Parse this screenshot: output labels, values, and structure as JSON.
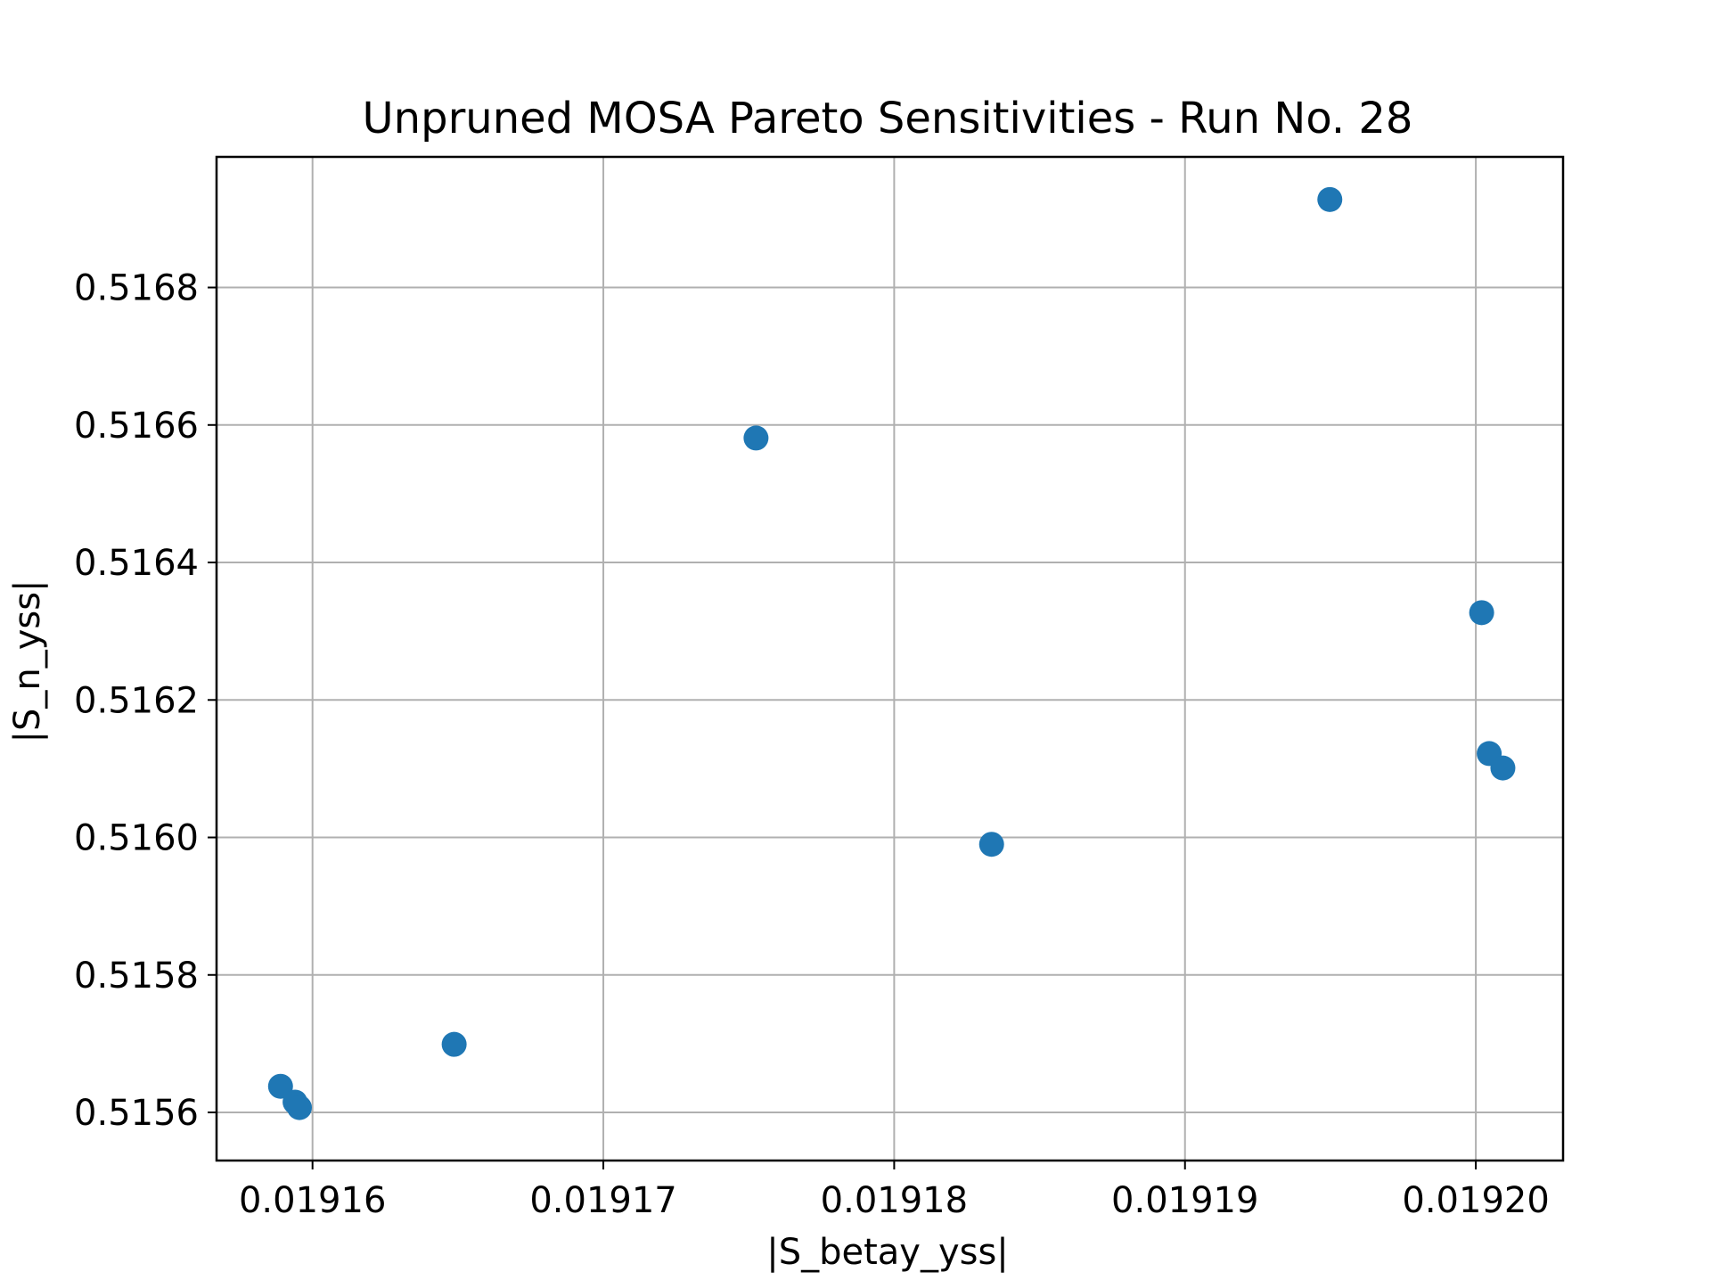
{
  "chart_data": {
    "type": "scatter",
    "title": "Unpruned MOSA Pareto Sensitivities - Run No. 28",
    "xlabel": "|S_betay_yss|",
    "ylabel": "|S_n_yss|",
    "xlim": [
      0.0191567,
      0.019203
    ],
    "ylim": [
      0.51553,
      0.51699
    ],
    "xticks": [
      0.01916,
      0.01917,
      0.01918,
      0.01919,
      0.0192
    ],
    "xtick_labels": [
      "0.01916",
      "0.01917",
      "0.01918",
      "0.01919",
      "0.01920"
    ],
    "yticks": [
      0.5156,
      0.5158,
      0.516,
      0.5162,
      0.5164,
      0.5166,
      0.5168
    ],
    "ytick_labels": [
      "0.5156",
      "0.5158",
      "0.5160",
      "0.5162",
      "0.5164",
      "0.5166",
      "0.5168"
    ],
    "grid": true,
    "marker_color": "#1f77b4",
    "points": [
      {
        "x": 0.0191589,
        "y": 0.515638
      },
      {
        "x": 0.0191594,
        "y": 0.515615
      },
      {
        "x": 0.01915955,
        "y": 0.515607
      },
      {
        "x": 0.01916487,
        "y": 0.515699
      },
      {
        "x": 0.01917525,
        "y": 0.516581
      },
      {
        "x": 0.01918335,
        "y": 0.51599
      },
      {
        "x": 0.01919498,
        "y": 0.516928
      },
      {
        "x": 0.0192002,
        "y": 0.516327
      },
      {
        "x": 0.01920046,
        "y": 0.516122
      },
      {
        "x": 0.01920093,
        "y": 0.516101
      }
    ]
  }
}
